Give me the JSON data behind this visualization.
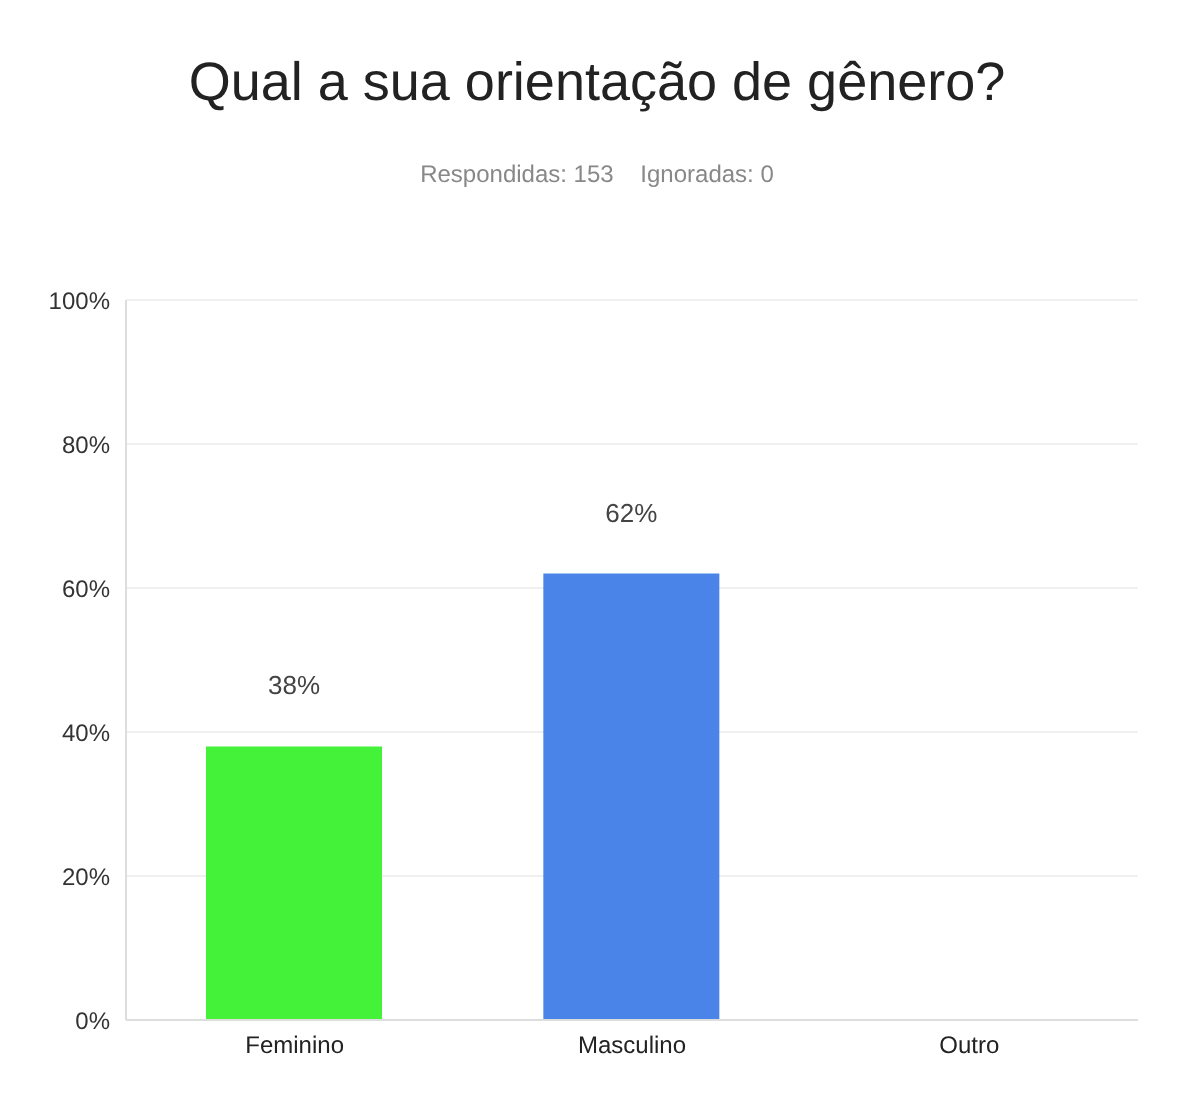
{
  "chart_data": {
    "type": "bar",
    "title": "Qual a sua orientação de gênero?",
    "subtitle": "Respondidas: 153    Ignoradas: 0",
    "categories": [
      "Feminino",
      "Masculino",
      "Outro"
    ],
    "values": [
      38,
      62,
      0
    ],
    "colors": [
      "#44f23a",
      "#4a84e8",
      "#9e9e9e"
    ],
    "value_labels": [
      "38%",
      "62%",
      null
    ],
    "ylim": [
      0,
      100
    ],
    "yticks": [
      {
        "value": 0,
        "label": "0%"
      },
      {
        "value": 20,
        "label": "20%"
      },
      {
        "value": 40,
        "label": "40%"
      },
      {
        "value": 60,
        "label": "60%"
      },
      {
        "value": 80,
        "label": "80%"
      },
      {
        "value": 100,
        "label": "100%"
      }
    ],
    "grid": "y"
  }
}
